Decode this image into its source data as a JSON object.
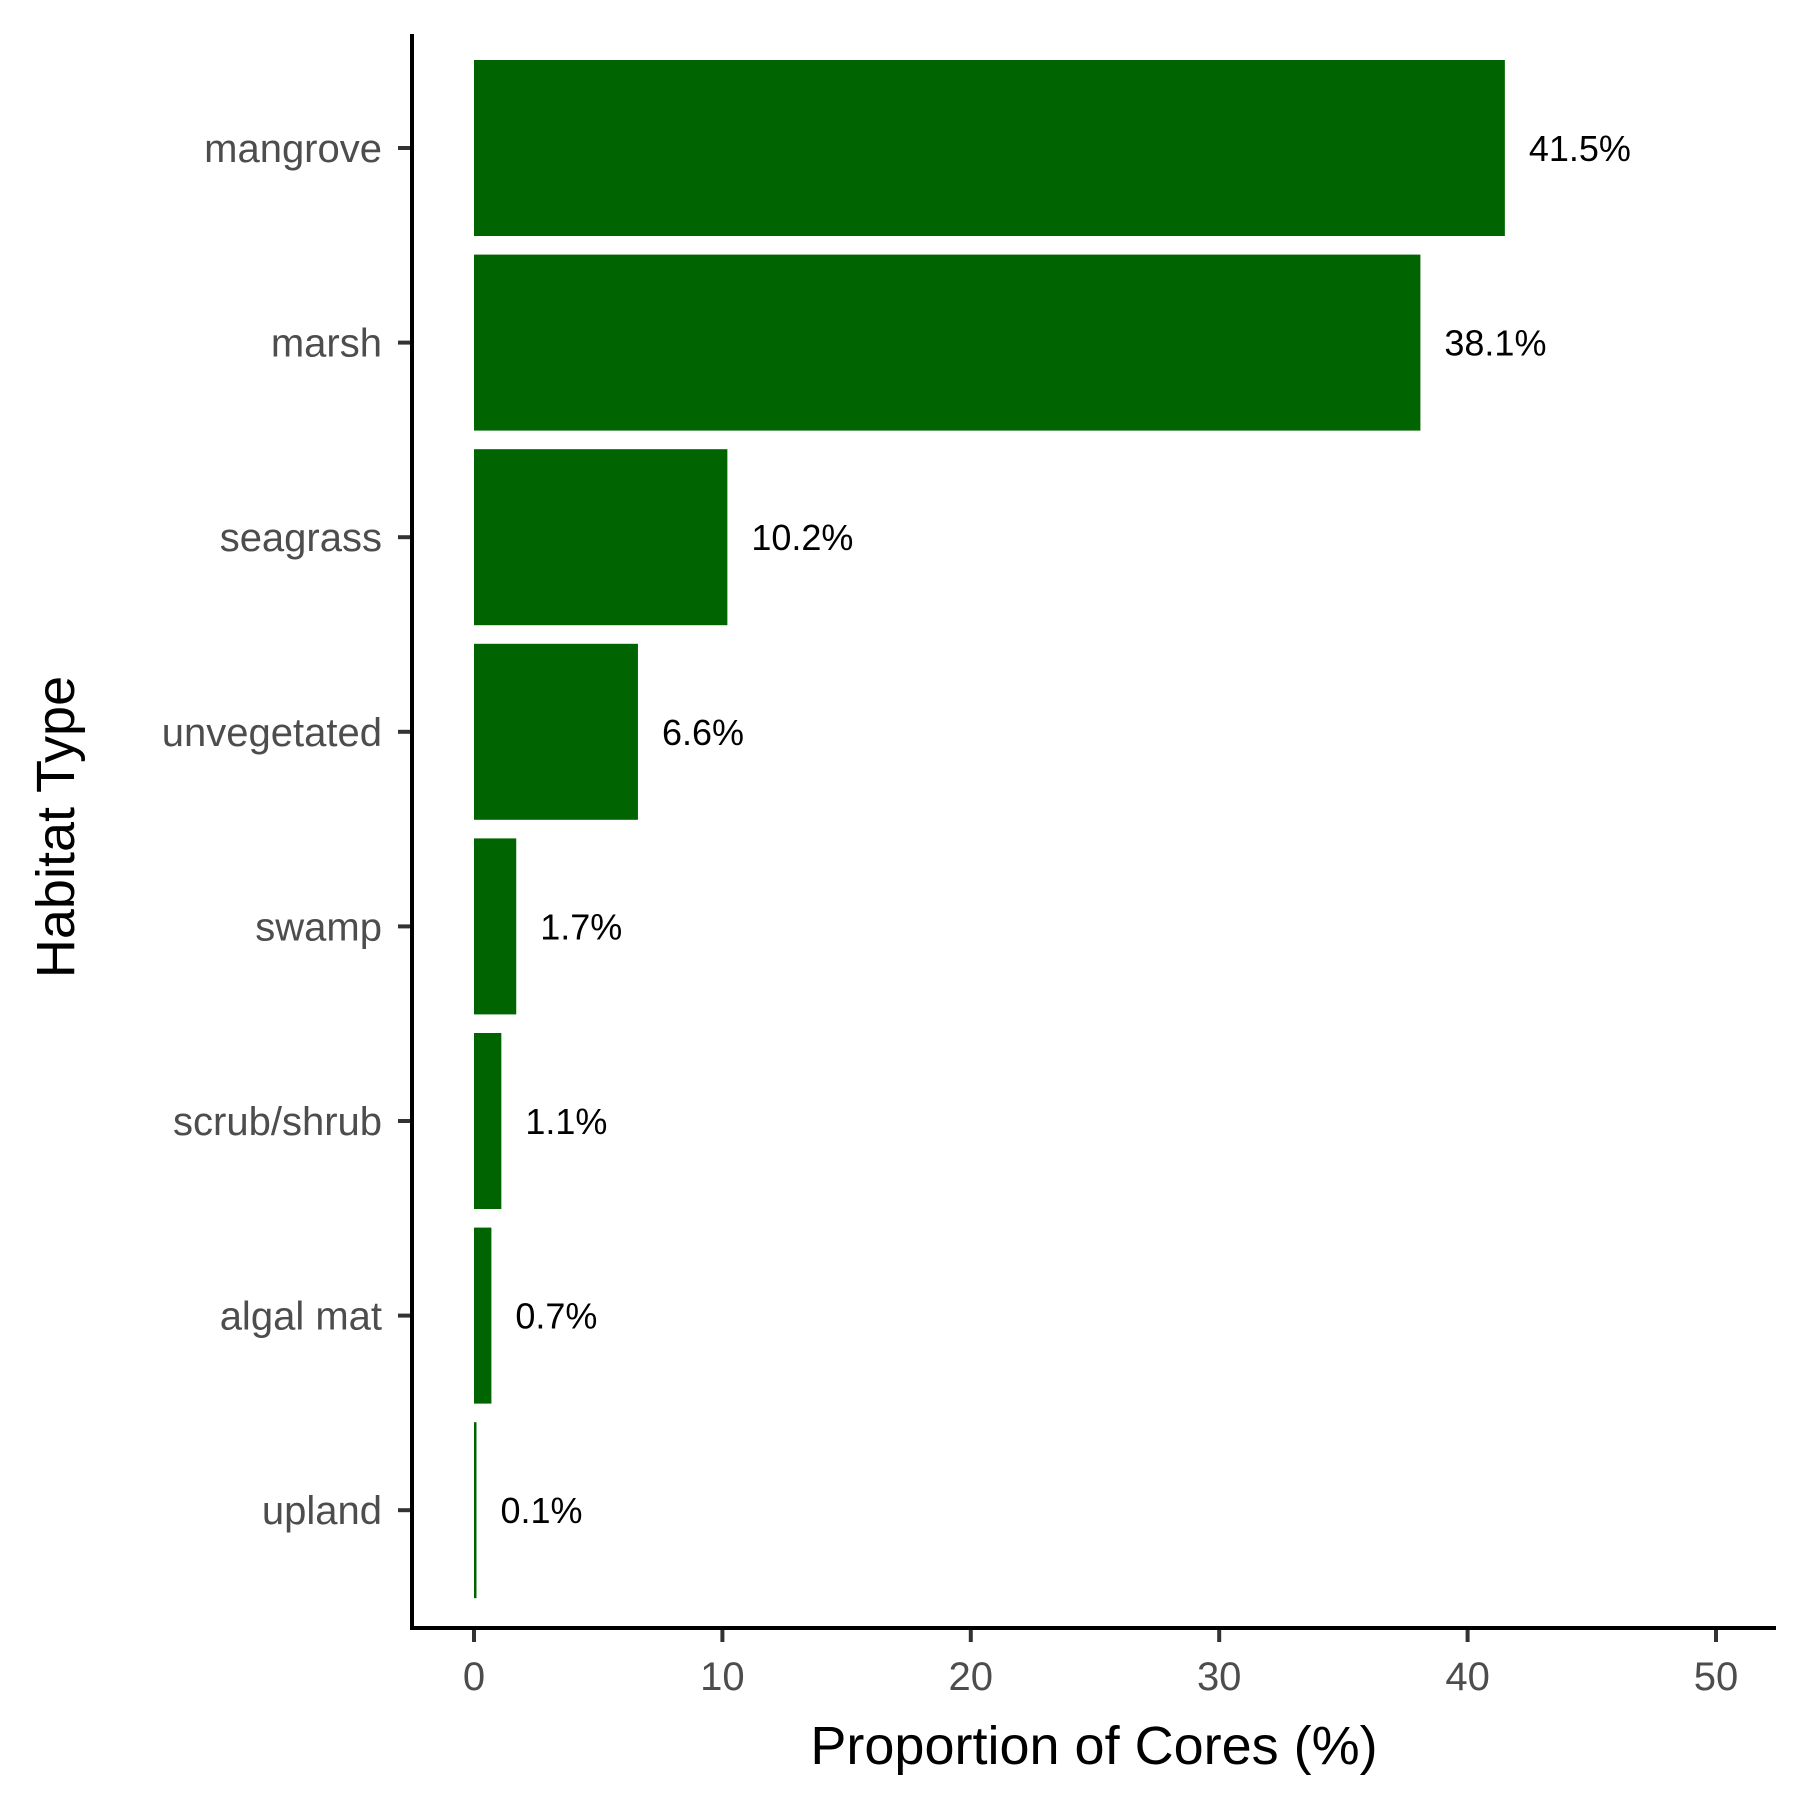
{
  "chart_data": {
    "type": "bar",
    "orientation": "horizontal",
    "title": "",
    "xlabel": "Proportion of Cores (%)",
    "ylabel": "Habitat Type",
    "categories": [
      "mangrove",
      "marsh",
      "seagrass",
      "unvegetated",
      "swamp",
      "scrub/shrub",
      "algal mat",
      "upland"
    ],
    "values": [
      41.5,
      38.1,
      10.2,
      6.6,
      1.7,
      1.1,
      0.7,
      0.1
    ],
    "data_labels": [
      "41.5%",
      "38.1%",
      "10.2%",
      "6.6%",
      "1.7%",
      "1.1%",
      "0.7%",
      "0.1%"
    ],
    "xlim": [
      0,
      50
    ],
    "x_ticks": [
      0,
      10,
      20,
      30,
      40,
      50
    ],
    "x_tick_labels": [
      "0",
      "10",
      "20",
      "30",
      "40",
      "50"
    ],
    "grid": false,
    "legend": "none",
    "bar_color": "#006400"
  }
}
